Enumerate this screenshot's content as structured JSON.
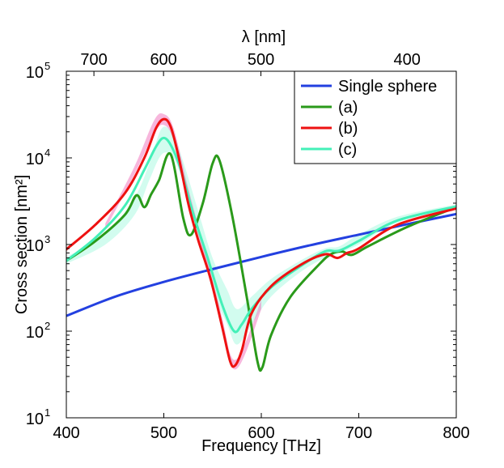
{
  "chart_data": {
    "type": "line",
    "title": "",
    "xlabel": "Frequency [THz]",
    "ylabel": "Cross section [nm²]",
    "top_xlabel": "λ [nm]",
    "xlim": [
      400,
      800
    ],
    "ylim": [
      10,
      100000
    ],
    "yscale": "log",
    "x_ticks": [
      "400",
      "500",
      "600",
      "700",
      "800"
    ],
    "y_ticks": [
      {
        "base": "10",
        "exp": "1"
      },
      {
        "base": "10",
        "exp": "2"
      },
      {
        "base": "10",
        "exp": "3"
      },
      {
        "base": "10",
        "exp": "4"
      },
      {
        "base": "10",
        "exp": "5"
      }
    ],
    "top_ticks": [
      {
        "label": "700",
        "freq": 428.3
      },
      {
        "label": "600",
        "freq": 499.7
      },
      {
        "label": "500",
        "freq": 599.6
      },
      {
        "label": "400",
        "freq": 749.5
      }
    ],
    "legend_position": "top-right",
    "band_c": {
      "x": [
        400,
        440,
        470,
        485,
        498,
        510,
        520,
        535,
        550,
        565,
        575,
        590,
        610,
        640,
        665,
        680,
        700,
        740,
        800
      ],
      "low": [
        600,
        1000,
        2200,
        5500,
        11000,
        10000,
        5000,
        1300,
        300,
        120,
        70,
        120,
        250,
        480,
        700,
        800,
        1000,
        1800,
        2600
      ],
      "high": [
        720,
        1300,
        3500,
        8500,
        22000,
        18000,
        9000,
        2500,
        700,
        300,
        180,
        250,
        400,
        650,
        900,
        950,
        1300,
        2100,
        2900
      ]
    },
    "band_b": {
      "x": [
        440,
        470,
        490,
        500,
        510,
        525,
        545,
        560,
        568,
        575,
        585,
        600
      ],
      "low": [
        1500,
        6500,
        19000,
        24000,
        16000,
        3500,
        500,
        100,
        43,
        37,
        60,
        180
      ],
      "high": [
        1750,
        8000,
        27000,
        32000,
        22000,
        4500,
        650,
        140,
        55,
        48,
        80,
        230
      ]
    },
    "series": [
      {
        "name": "Single sphere",
        "color": "#2340e0",
        "x": [
          400,
          450,
          500,
          550,
          600,
          650,
          700,
          750,
          800
        ],
        "y": [
          150,
          250,
          370,
          520,
          720,
          980,
          1300,
          1720,
          2250
        ]
      },
      {
        "name": "(a)",
        "color": "#2a9a1a",
        "x": [
          400,
          430,
          460,
          472,
          480,
          487,
          495,
          507,
          520,
          528,
          540,
          550,
          557,
          570,
          585,
          596,
          601,
          610,
          630,
          660,
          672,
          683,
          693,
          710,
          750,
          800
        ],
        "y": [
          650,
          1100,
          2200,
          3700,
          2700,
          3800,
          5500,
          11000,
          2000,
          1300,
          3000,
          8600,
          9400,
          2200,
          250,
          45,
          38,
          90,
          250,
          600,
          780,
          830,
          760,
          960,
          1600,
          2700
        ]
      },
      {
        "name": "(b)",
        "color": "#ee1111",
        "x": [
          400,
          430,
          460,
          480,
          492,
          500,
          507,
          515,
          525,
          535,
          548,
          560,
          568,
          573,
          580,
          590,
          610,
          640,
          665,
          678,
          688,
          700,
          740,
          800
        ],
        "y": [
          880,
          1700,
          3900,
          10000,
          22000,
          28000,
          23000,
          10500,
          3000,
          1150,
          400,
          110,
          45,
          40,
          60,
          160,
          330,
          580,
          770,
          700,
          800,
          900,
          1700,
          2600
        ]
      },
      {
        "name": "(c)",
        "color": "#44f0b8",
        "x": [
          400,
          430,
          460,
          480,
          492,
          500,
          508,
          518,
          530,
          545,
          560,
          572,
          580,
          590,
          610,
          640,
          665,
          680,
          700,
          740,
          800
        ],
        "y": [
          650,
          1200,
          2800,
          7300,
          13500,
          17000,
          13500,
          7000,
          2300,
          700,
          200,
          100,
          120,
          180,
          320,
          560,
          830,
          850,
          1100,
          1900,
          2750
        ]
      }
    ]
  }
}
